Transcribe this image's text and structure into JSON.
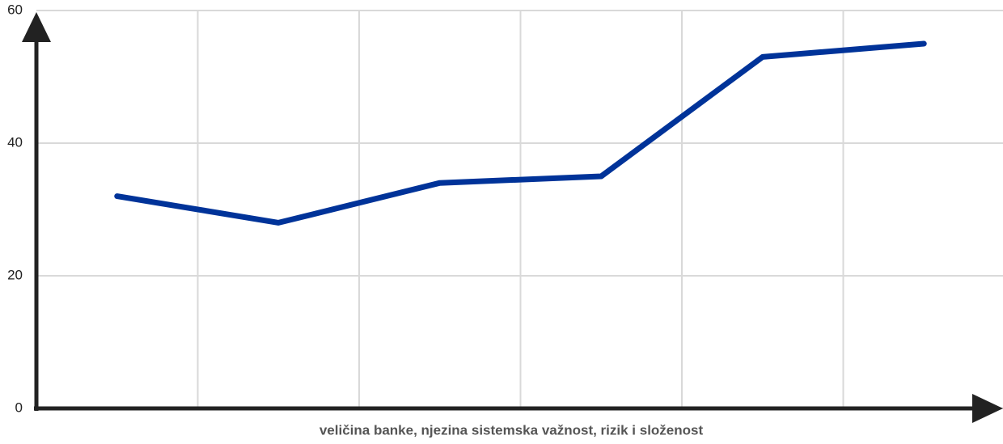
{
  "chart_data": {
    "type": "line",
    "x_label": "veličina banke, njezina sistemska važnost, rizik i složenost",
    "categories": [
      null,
      null,
      null,
      null,
      null,
      null
    ],
    "series": [
      {
        "color": "#003399",
        "values": [
          32,
          28,
          34,
          35,
          53,
          55
        ]
      }
    ],
    "ylim": [
      0,
      60
    ],
    "yticks": [
      0,
      20,
      40,
      60
    ],
    "grid": true
  }
}
